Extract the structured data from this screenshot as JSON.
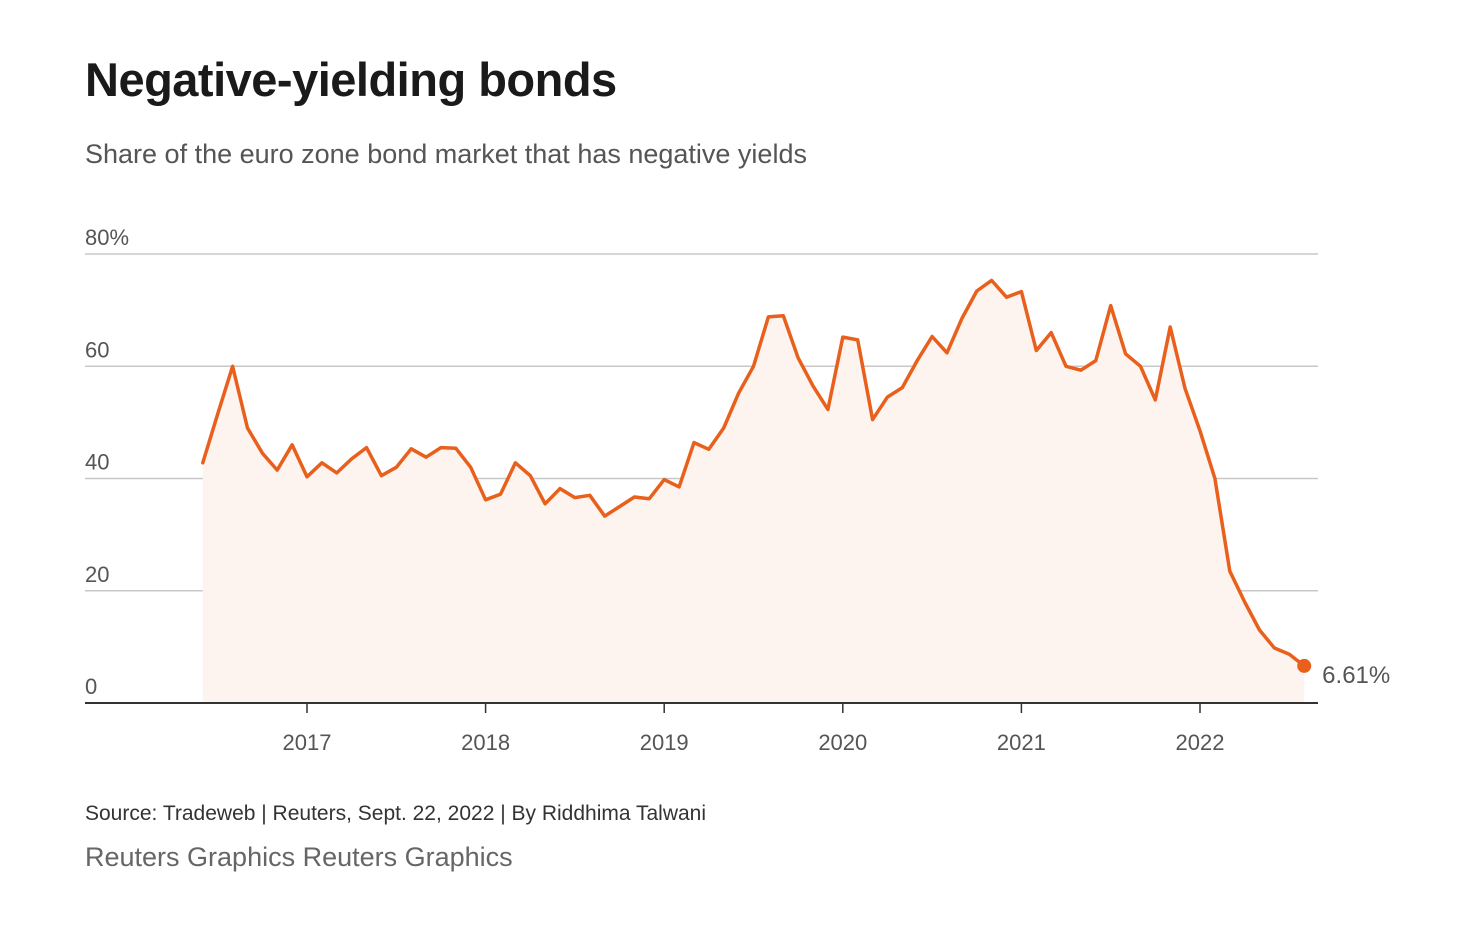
{
  "header": {
    "title": "Negative-yielding bonds",
    "subtitle": "Share of the euro zone bond market that has negative yields"
  },
  "footer": {
    "source": "Source: Tradeweb | Reuters, Sept. 22, 2022 | By Riddhima Talwani",
    "credit": "Reuters Graphics Reuters Graphics"
  },
  "colors": {
    "line": "#e8601c",
    "area": "#fdf3ef",
    "grid": "#c8c8c8",
    "axis": "#333333"
  },
  "chart_data": {
    "type": "line",
    "title": "Negative-yielding bonds",
    "subtitle": "Share of the euro zone bond market that has negative yields",
    "xlabel": "",
    "ylabel": "",
    "ylim": [
      0,
      80
    ],
    "xlim": [
      "2016-01-01",
      "2022-12-01"
    ],
    "grid": true,
    "area_fill": true,
    "y_ticks": [
      {
        "value": 0,
        "label": "0"
      },
      {
        "value": 20,
        "label": "20"
      },
      {
        "value": 40,
        "label": "40"
      },
      {
        "value": 60,
        "label": "60"
      },
      {
        "value": 80,
        "label": "80%"
      }
    ],
    "x_ticks": [
      {
        "date": "2017-01-01",
        "label": "2017"
      },
      {
        "date": "2018-01-01",
        "label": "2018"
      },
      {
        "date": "2019-01-01",
        "label": "2019"
      },
      {
        "date": "2020-01-01",
        "label": "2020"
      },
      {
        "date": "2021-01-01",
        "label": "2021"
      },
      {
        "date": "2022-01-01",
        "label": "2022"
      }
    ],
    "end_label": "6.61%",
    "series": [
      {
        "x": [
          "2016-06",
          "2016-07",
          "2016-08",
          "2016-09",
          "2016-10",
          "2016-11",
          "2016-12",
          "2017-01",
          "2017-02",
          "2017-03",
          "2017-04",
          "2017-05",
          "2017-06",
          "2017-07",
          "2017-08",
          "2017-09",
          "2017-10",
          "2017-11",
          "2017-12",
          "2018-01",
          "2018-02",
          "2018-03",
          "2018-04",
          "2018-05",
          "2018-06",
          "2018-07",
          "2018-08",
          "2018-09",
          "2018-10",
          "2018-11",
          "2018-12",
          "2019-01",
          "2019-02",
          "2019-03",
          "2019-04",
          "2019-05",
          "2019-06",
          "2019-07",
          "2019-08",
          "2019-09",
          "2019-10",
          "2019-11",
          "2019-12",
          "2020-01",
          "2020-02",
          "2020-03",
          "2020-04",
          "2020-05",
          "2020-06",
          "2020-07",
          "2020-08",
          "2020-09",
          "2020-10",
          "2020-11",
          "2020-12",
          "2021-01",
          "2021-02",
          "2021-03",
          "2021-04",
          "2021-05",
          "2021-06",
          "2021-07",
          "2021-08",
          "2021-09",
          "2021-10",
          "2021-11",
          "2021-12",
          "2022-01",
          "2022-02",
          "2022-03",
          "2022-04",
          "2022-05",
          "2022-06",
          "2022-07",
          "2022-08"
        ],
        "values": [
          42.8,
          51.5,
          60.0,
          49.0,
          44.5,
          41.5,
          46.0,
          40.3,
          42.8,
          41.0,
          43.5,
          45.5,
          40.5,
          42.0,
          45.3,
          43.8,
          45.5,
          45.4,
          42.0,
          36.2,
          37.2,
          42.8,
          40.5,
          35.5,
          38.2,
          36.6,
          37.0,
          33.3,
          35.0,
          36.7,
          36.4,
          39.8,
          38.5,
          46.4,
          45.2,
          49.0,
          55.2,
          60.0,
          68.8,
          69.0,
          61.5,
          56.5,
          52.3,
          65.2,
          64.7,
          50.5,
          54.5,
          56.2,
          61.0,
          65.3,
          62.4,
          68.5,
          73.4,
          75.3,
          72.3,
          73.3,
          62.8,
          66.0,
          60.0,
          59.3,
          61.0,
          70.8,
          62.2,
          60.0,
          54.0,
          67.0,
          56.0,
          48.5,
          40.0,
          23.5,
          18.0,
          13.0,
          9.8,
          8.7,
          6.61
        ]
      }
    ]
  }
}
